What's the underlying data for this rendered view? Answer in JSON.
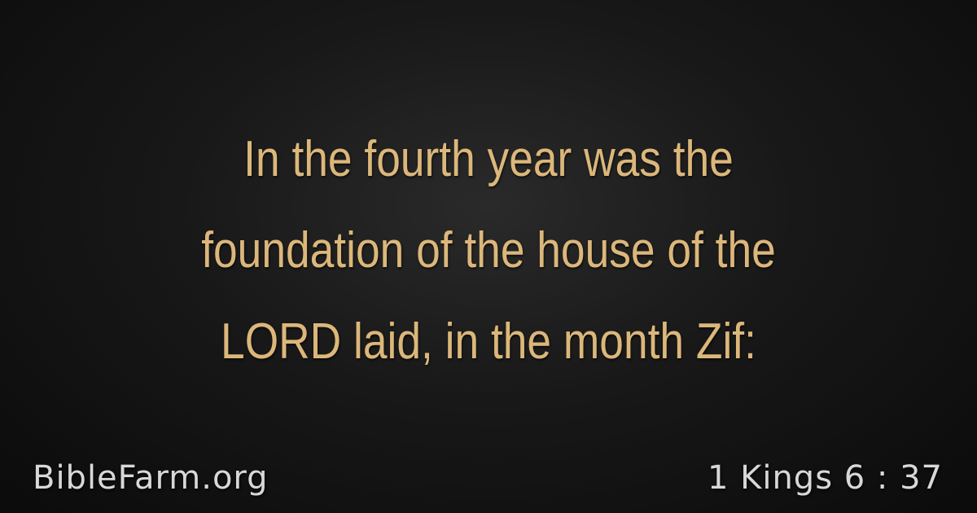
{
  "verse": {
    "lines": [
      "In the fourth year was the",
      "foundation of the house of the",
      "LORD laid, in the month Zif:"
    ]
  },
  "footer": {
    "site": "BibleFarm.org",
    "reference": "1 Kings 6 : 37"
  },
  "colors": {
    "verse_text": "#dcb77a",
    "footer_text": "#d8d8d8",
    "background": "#141414"
  }
}
